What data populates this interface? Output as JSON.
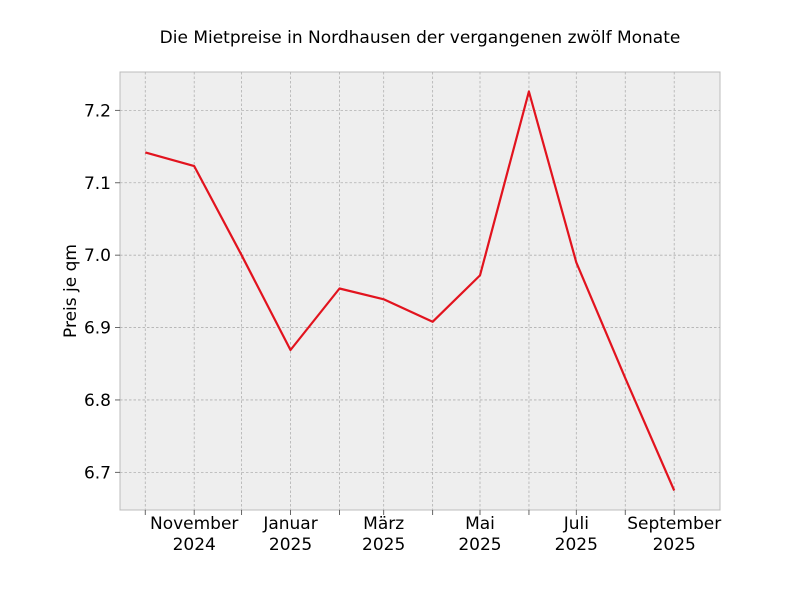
{
  "chart_data": {
    "type": "line",
    "title": "Die Mietpreise in Nordhausen der vergangenen zwölf Monate",
    "xlabel": "",
    "ylabel": "Preis je qm",
    "x": [
      "2024-10",
      "2024-11",
      "2024-12",
      "2025-01",
      "2025-02",
      "2025-03",
      "2025-04",
      "2025-05",
      "2025-06",
      "2025-07",
      "2025-08",
      "2025-09"
    ],
    "series": [
      {
        "color": "#e2131e",
        "values": [
          7.142,
          7.123,
          7.0,
          6.869,
          6.954,
          6.939,
          6.908,
          6.972,
          7.226,
          6.99,
          6.83,
          6.675
        ]
      }
    ],
    "x_tick_labels": [
      {
        "x": "2024-11",
        "line1": "November",
        "line2": "2024"
      },
      {
        "x": "2025-01",
        "line1": "Januar",
        "line2": "2025"
      },
      {
        "x": "2025-03",
        "line1": "März",
        "line2": "2025"
      },
      {
        "x": "2025-05",
        "line1": "Mai",
        "line2": "2025"
      },
      {
        "x": "2025-07",
        "line1": "Juli",
        "line2": "2025"
      },
      {
        "x": "2025-09",
        "line1": "September",
        "line2": "2025"
      }
    ],
    "x_minor_ticks": [
      "2024-10",
      "2024-12",
      "2025-02",
      "2025-04",
      "2025-06",
      "2025-08"
    ],
    "y_ticks": [
      6.7,
      6.8,
      6.9,
      7.0,
      7.1,
      7.2
    ],
    "y_tick_labels": [
      "6.7",
      "6.8",
      "6.9",
      "7.0",
      "7.1",
      "7.2"
    ],
    "xlim": [
      "2024-09-15",
      "2025-09-30"
    ],
    "ylim": [
      6.648,
      7.253
    ],
    "grid": true,
    "background": "#eeeeee",
    "legend": "none"
  }
}
